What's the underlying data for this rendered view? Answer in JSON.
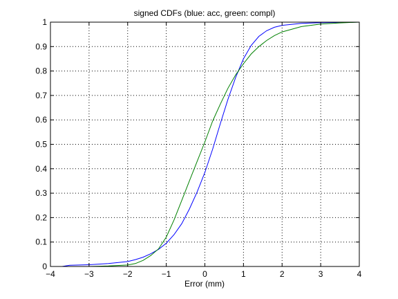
{
  "chart_data": {
    "type": "line",
    "title": "signed CDFs (blue: acc, green: compl)",
    "xlabel": "Error (mm)",
    "ylabel": "",
    "xlim": [
      -4,
      4
    ],
    "ylim": [
      0,
      1
    ],
    "grid": true,
    "xticks": [
      -4,
      -3,
      -2,
      -1,
      0,
      1,
      2,
      3,
      4
    ],
    "xtick_labels": [
      "−4",
      "−3",
      "−2",
      "−1",
      "0",
      "1",
      "2",
      "3",
      "4"
    ],
    "yticks": [
      0,
      0.1,
      0.2,
      0.3,
      0.4,
      0.5,
      0.6,
      0.7,
      0.8,
      0.9,
      1
    ],
    "ytick_labels": [
      "0",
      "0.1",
      "0.2",
      "0.3",
      "0.4",
      "0.5",
      "0.6",
      "0.7",
      "0.8",
      "0.9",
      "1"
    ],
    "series": [
      {
        "color": "#0000ff",
        "x": [
          -3.7,
          -3.5,
          -3.0,
          -2.5,
          -2.0,
          -1.8,
          -1.6,
          -1.4,
          -1.2,
          -1.0,
          -0.8,
          -0.6,
          -0.4,
          -0.2,
          0.0,
          0.2,
          0.4,
          0.6,
          0.8,
          1.0,
          1.2,
          1.4,
          1.6,
          1.8,
          2.0,
          2.5,
          3.0,
          3.5,
          4.0
        ],
        "y": [
          0.0,
          0.005,
          0.007,
          0.012,
          0.02,
          0.028,
          0.038,
          0.052,
          0.07,
          0.095,
          0.13,
          0.175,
          0.235,
          0.305,
          0.385,
          0.48,
          0.585,
          0.685,
          0.775,
          0.85,
          0.905,
          0.942,
          0.965,
          0.979,
          0.987,
          0.995,
          0.998,
          0.999,
          1.0
        ]
      },
      {
        "color": "#008000",
        "x": [
          -3.0,
          -2.5,
          -2.0,
          -1.8,
          -1.6,
          -1.4,
          -1.2,
          -1.0,
          -0.8,
          -0.6,
          -0.4,
          -0.2,
          0.0,
          0.2,
          0.4,
          0.6,
          0.8,
          1.0,
          1.2,
          1.4,
          1.6,
          1.8,
          2.0,
          2.5,
          3.0,
          3.5,
          4.0
        ],
        "y": [
          0.0,
          0.002,
          0.006,
          0.012,
          0.025,
          0.045,
          0.072,
          0.12,
          0.19,
          0.27,
          0.35,
          0.43,
          0.51,
          0.595,
          0.665,
          0.73,
          0.785,
          0.83,
          0.87,
          0.9,
          0.925,
          0.945,
          0.96,
          0.982,
          0.992,
          0.997,
          1.0
        ]
      }
    ]
  }
}
